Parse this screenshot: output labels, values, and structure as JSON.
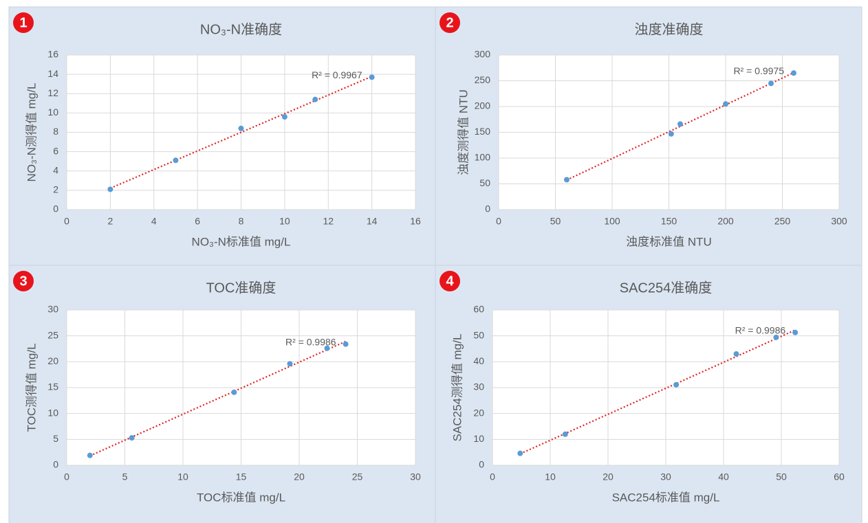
{
  "chart_data": [
    {
      "type": "scatter",
      "badge": "1",
      "title": "NO₃-N准确度",
      "xlabel": "NO₃-N标准值 mg/L",
      "ylabel": "NO₃-N测得值 mg/L",
      "x": [
        2,
        5,
        8,
        10,
        11.4,
        14
      ],
      "values": [
        2.1,
        5.1,
        8.4,
        9.6,
        11.4,
        13.7
      ],
      "xlim": [
        0,
        16
      ],
      "ylim": [
        0,
        16
      ],
      "xticks": [
        0,
        2,
        4,
        6,
        8,
        10,
        12,
        14,
        16
      ],
      "yticks": [
        0,
        2,
        4,
        6,
        8,
        10,
        12,
        14,
        16
      ],
      "annotation": "R² = 0.9967",
      "color": "#5b9bd5",
      "trendline_color": "#e02020",
      "grid": true
    },
    {
      "type": "scatter",
      "badge": "2",
      "title": "浊度准确度",
      "xlabel": "浊度标准值 NTU",
      "ylabel": "浊度测得值 NTU",
      "x": [
        60,
        152,
        160,
        200,
        240,
        260
      ],
      "values": [
        58,
        147,
        166,
        205,
        245,
        265
      ],
      "xlim": [
        0,
        300
      ],
      "ylim": [
        0,
        300
      ],
      "xticks": [
        0,
        50,
        100,
        150,
        200,
        250,
        300
      ],
      "yticks": [
        0,
        50,
        100,
        150,
        200,
        250,
        300
      ],
      "annotation": "R² = 0.9975",
      "color": "#5b9bd5",
      "trendline_color": "#e02020",
      "grid": true
    },
    {
      "type": "scatter",
      "badge": "3",
      "title": "TOC准确度",
      "xlabel": "TOC标准值 mg/L",
      "ylabel": "TOC测得值 mg/L",
      "x": [
        2,
        5.6,
        14.4,
        19.2,
        22.4,
        24
      ],
      "values": [
        1.9,
        5.3,
        14.1,
        19.6,
        22.6,
        23.4
      ],
      "xlim": [
        0,
        30
      ],
      "ylim": [
        0,
        30
      ],
      "xticks": [
        0,
        5,
        10,
        15,
        20,
        25,
        30
      ],
      "yticks": [
        0,
        5,
        10,
        15,
        20,
        25,
        30
      ],
      "annotation": "R² = 0.9986",
      "color": "#5b9bd5",
      "trendline_color": "#e02020",
      "grid": true
    },
    {
      "type": "scatter",
      "badge": "4",
      "title": "SAC254准确度",
      "xlabel": "SAC254标准值 mg/L",
      "ylabel": "SAC254测得值 mg/L",
      "x": [
        4.8,
        12.6,
        31.8,
        42.2,
        49.1,
        52.4
      ],
      "values": [
        4.6,
        12,
        31.1,
        43,
        49.4,
        51.3
      ],
      "xlim": [
        0,
        60
      ],
      "ylim": [
        0,
        60
      ],
      "xticks": [
        0,
        10,
        20,
        30,
        40,
        50,
        60
      ],
      "yticks": [
        0,
        10,
        20,
        30,
        40,
        50,
        60
      ],
      "annotation": "R² = 0.9986",
      "color": "#5b9bd5",
      "trendline_color": "#e02020",
      "grid": true
    }
  ]
}
